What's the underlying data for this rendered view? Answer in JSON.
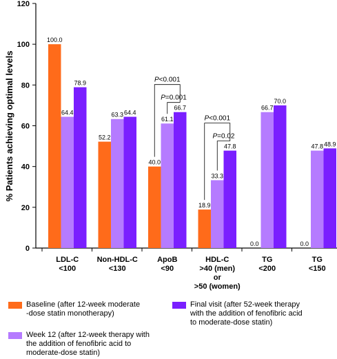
{
  "chart_data": {
    "type": "bar",
    "ylabel": "% Patients achieving optimal levels",
    "xlabel": "",
    "ylim": [
      0,
      120
    ],
    "yticks": [
      0,
      20,
      40,
      60,
      80,
      100,
      120
    ],
    "grid": false,
    "legend_position": "bottom",
    "categories": [
      [
        "LDL-C",
        "<100"
      ],
      [
        "Non-HDL-C",
        "<130"
      ],
      [
        "ApoB",
        "<90"
      ],
      [
        "HDL-C",
        ">40 (men)",
        "or",
        ">50 (women)"
      ],
      [
        "TG",
        "<200"
      ],
      [
        "TG",
        "<150"
      ]
    ],
    "series": [
      {
        "name": "Baseline (after 12-week moderate -dose statin monotherapy)",
        "legend_lines": [
          "Baseline (after 12-week moderate",
          "-dose statin monotherapy)"
        ],
        "color": "#FF6B1A",
        "values": [
          100.0,
          52.2,
          40.0,
          18.9,
          0.0,
          0.0
        ],
        "labels": [
          "100.0",
          "52.2",
          "40.0",
          "18.9",
          "0.0",
          "0.0"
        ]
      },
      {
        "name": "Week 12 (after 12-week therapy with the addition of fenofibric acid to moderate-dose statin)",
        "legend_lines": [
          "Week 12 (after 12-week therapy with",
          "the addition of fenofibric acid to",
          "moderate-dose statin)"
        ],
        "color": "#B57BFF",
        "values": [
          64.4,
          63.3,
          61.1,
          33.3,
          66.7,
          47.8
        ],
        "labels": [
          "64.4",
          "63.3",
          "61.1",
          "33.3",
          "66.7",
          "47.8"
        ]
      },
      {
        "name": "Final visit (after 52-week therapy with the addition of fenofibric acid to moderate-dose statin)",
        "legend_lines": [
          "Final visit (after 52-week therapy",
          "with the addition of fenofibric acid",
          "to moderate-dose statin)"
        ],
        "color": "#7A1FFF",
        "values": [
          78.9,
          64.4,
          66.7,
          47.8,
          70.0,
          48.9
        ],
        "labels": [
          "78.9",
          "64.4",
          "66.7",
          "47.8",
          "70.0",
          "48.9"
        ]
      }
    ],
    "annotations": [
      {
        "category": 2,
        "from_series": 0,
        "to_series": 2,
        "p_text": "<0.001",
        "level": 2
      },
      {
        "category": 2,
        "from_series": 1,
        "to_series": 2,
        "p_text": "=0.001",
        "level": 1
      },
      {
        "category": 3,
        "from_series": 0,
        "to_series": 2,
        "p_text": "<0.001",
        "level": 2
      },
      {
        "category": 3,
        "from_series": 1,
        "to_series": 2,
        "p_text": "=0.02",
        "level": 1
      }
    ],
    "p_label": "P"
  }
}
